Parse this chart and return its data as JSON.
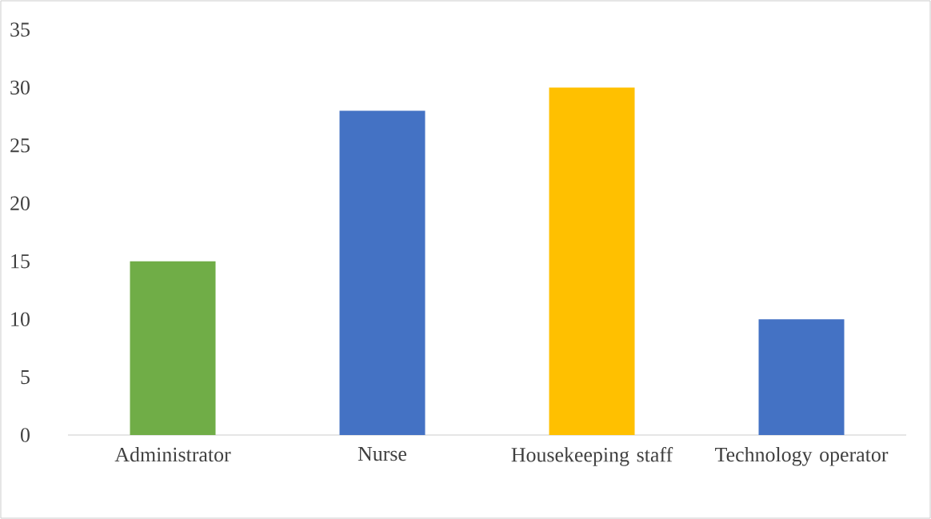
{
  "chart_data": {
    "type": "bar",
    "categories": [
      "Administrator",
      "Nurse",
      "Housekeeping staff",
      "Technology operator"
    ],
    "values": [
      15,
      28,
      30,
      10
    ],
    "colors": [
      "#70ad47",
      "#4472c4",
      "#ffc000",
      "#4472c4"
    ],
    "ylim": [
      0,
      35
    ],
    "yticks": [
      0,
      5,
      10,
      15,
      20,
      25,
      30,
      35
    ]
  }
}
